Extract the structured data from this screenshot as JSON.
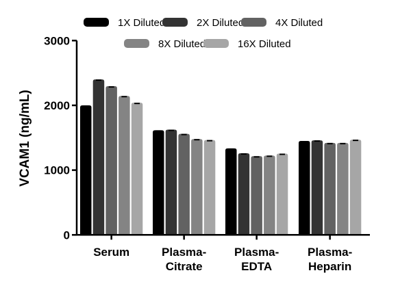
{
  "chart_data": {
    "type": "bar",
    "title": "",
    "xlabel": "",
    "ylabel": "VCAM1 (ng/mL)",
    "ylim": [
      0,
      3000
    ],
    "yticks": [
      "0",
      "1000",
      "2000",
      "3000"
    ],
    "grid": false,
    "legend_position": "top",
    "categories": [
      [
        "Serum"
      ],
      [
        "Plasma-",
        "Citrate"
      ],
      [
        "Plasma-",
        "EDTA"
      ],
      [
        "Plasma-",
        "Heparin"
      ]
    ],
    "series": [
      {
        "name": "1X Diluted",
        "color": "#000000",
        "values": [
          2000,
          1615,
          1335,
          1450
        ]
      },
      {
        "name": "2X Diluted",
        "color": "#333333",
        "values": [
          2400,
          1625,
          1260,
          1460
        ]
      },
      {
        "name": "4X Diluted",
        "color": "#626262",
        "values": [
          2295,
          1560,
          1215,
          1420
        ]
      },
      {
        "name": "8X Diluted",
        "color": "#848484",
        "values": [
          2145,
          1480,
          1225,
          1420
        ]
      },
      {
        "name": "16X Diluted",
        "color": "#a6a6a6",
        "values": [
          2040,
          1465,
          1255,
          1470
        ]
      }
    ]
  }
}
